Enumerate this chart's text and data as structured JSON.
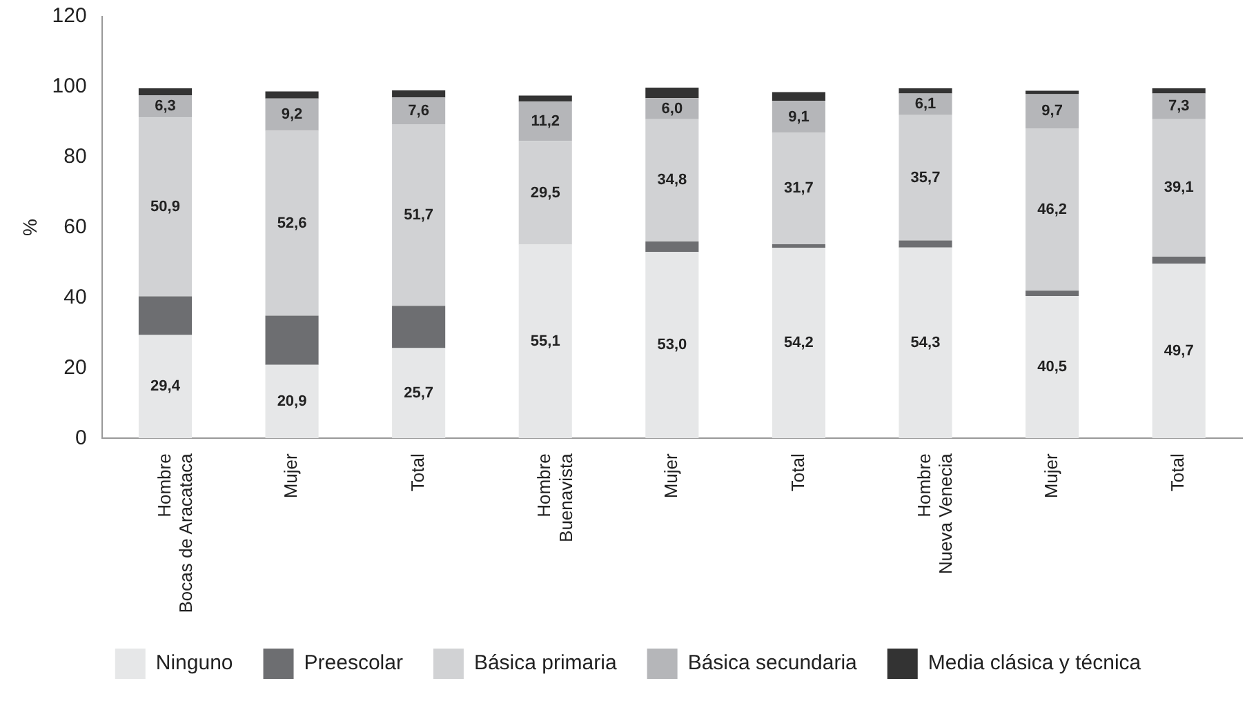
{
  "chart_data": {
    "type": "bar",
    "stacked": true,
    "ylabel": "%",
    "categories": [
      "Hombre\nBocas de Aracataca",
      "Mujer",
      "Total",
      "Hombre\nBuenavista",
      "Mujer",
      "Total",
      "Hombre\nNueva Venecia",
      "Mujer",
      "Total"
    ],
    "series": [
      {
        "name": "Ninguno",
        "color": "#e6e7e8",
        "values": [
          29.4,
          20.9,
          25.7,
          55.1,
          53.0,
          54.2,
          54.3,
          40.5,
          49.7
        ],
        "value_labels": [
          "29,4",
          "20,9",
          "25,7",
          "55,1",
          "53,0",
          "54,2",
          "54,3",
          "40,5",
          "49,7"
        ]
      },
      {
        "name": "Preescolar",
        "color": "#6d6e71",
        "values": [
          11,
          14,
          12,
          0,
          3,
          1,
          2,
          1.5,
          2
        ]
      },
      {
        "name": "Básica primaria",
        "color": "#d1d2d4",
        "values": [
          50.9,
          52.6,
          51.7,
          29.5,
          34.8,
          31.7,
          35.7,
          46.2,
          39.1
        ],
        "value_labels": [
          "50,9",
          "52,6",
          "51,7",
          "29,5",
          "34,8",
          "31,7",
          "35,7",
          "46,2",
          "39,1"
        ]
      },
      {
        "name": "Básica secundaria",
        "color": "#b5b6b9",
        "values": [
          6.3,
          9.2,
          7.6,
          11.2,
          6.0,
          9.1,
          6.1,
          9.7,
          7.3
        ],
        "value_labels": [
          "6,3",
          "9,2",
          "7,6",
          "11,2",
          "6,0",
          "9,1",
          "6,1",
          "9,7",
          "7,3"
        ]
      },
      {
        "name": "Media clásica y técnica",
        "color": "#333333",
        "values": [
          2,
          2,
          2,
          1.7,
          3,
          2.5,
          1.5,
          1,
          1.5
        ]
      }
    ],
    "ylim": [
      0,
      120
    ],
    "yticks": [
      0,
      20,
      40,
      60,
      80,
      100,
      120
    ],
    "grid": false,
    "legend": "bottom"
  }
}
